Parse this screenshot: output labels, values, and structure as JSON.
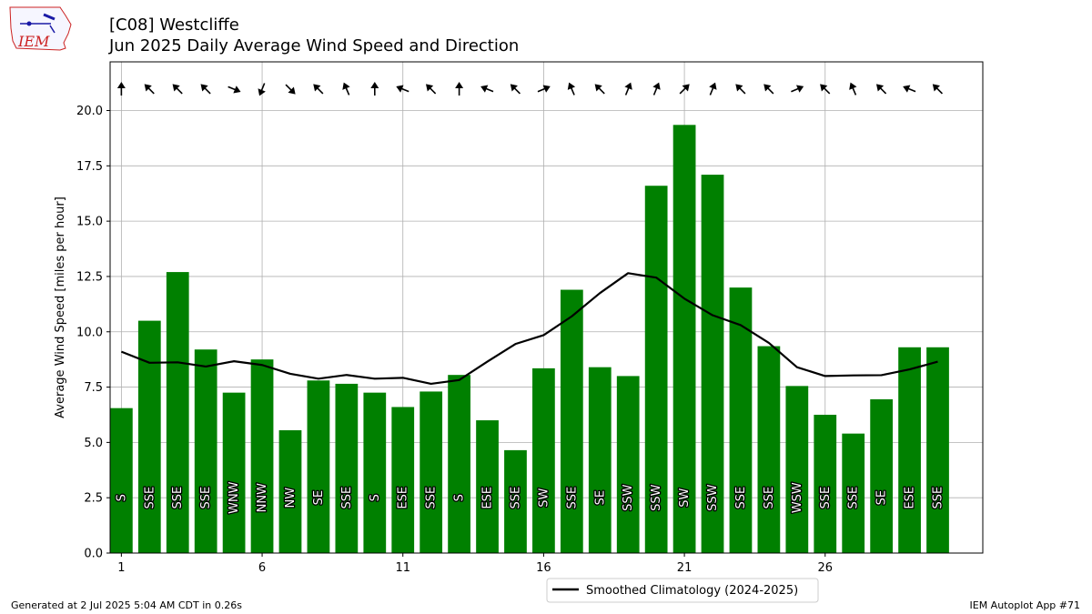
{
  "header": {
    "title_line_1": "[C08] Westcliffe",
    "title_line_2": "Jun 2025 Daily Average Wind Speed and Direction"
  },
  "logo": {
    "text": "IEM"
  },
  "footer": {
    "generated": "Generated at 2 Jul 2025 5:04 AM CDT in 0.26s",
    "app": "IEM Autoplot App #71"
  },
  "colors": {
    "bar": "#008000",
    "line": "#000000",
    "grid": "#b0b0b0",
    "logo_red": "#cc2222",
    "logo_blue": "#1a1aa6"
  },
  "chart_data": {
    "type": "bar",
    "title": "[C08] Westcliffe",
    "subtitle": "Jun 2025 Daily Average Wind Speed and Direction",
    "ylabel": "Average Wind Speed [miles per hour]",
    "xlabel": "",
    "ylim": [
      0,
      22.2
    ],
    "xlim": [
      0.6,
      31.6
    ],
    "yticks": [
      0.0,
      2.5,
      5.0,
      7.5,
      10.0,
      12.5,
      15.0,
      17.5,
      20.0
    ],
    "ytick_labels": [
      "0.0",
      "2.5",
      "5.0",
      "7.5",
      "10.0",
      "12.5",
      "15.0",
      "17.5",
      "20.0"
    ],
    "xticks": [
      1,
      6,
      11,
      16,
      21,
      26
    ],
    "xtick_labels": [
      "1",
      "6",
      "11",
      "16",
      "21",
      "26"
    ],
    "grid": true,
    "legend_position": "bottom-center, below the axes",
    "days": [
      1,
      2,
      3,
      4,
      5,
      6,
      7,
      8,
      9,
      10,
      11,
      12,
      13,
      14,
      15,
      16,
      17,
      18,
      19,
      20,
      21,
      22,
      23,
      24,
      25,
      26,
      27,
      28,
      29,
      30
    ],
    "values": [
      6.55,
      10.5,
      12.7,
      9.2,
      7.25,
      8.75,
      5.55,
      7.8,
      7.65,
      7.25,
      6.6,
      7.3,
      8.05,
      6.0,
      4.65,
      8.35,
      11.9,
      8.4,
      8.0,
      16.6,
      19.35,
      17.1,
      12.0,
      9.35,
      7.55,
      6.25,
      5.4,
      6.95,
      9.3,
      9.3
    ],
    "directions": [
      "S",
      "SSE",
      "SSE",
      "SSE",
      "WNW",
      "NNW",
      "NW",
      "SE",
      "SSE",
      "S",
      "ESE",
      "SSE",
      "S",
      "ESE",
      "SSE",
      "SW",
      "SSE",
      "SE",
      "SSW",
      "SSW",
      "SW",
      "SSW",
      "SSE",
      "SSE",
      "WSW",
      "SSE",
      "SSE",
      "SE",
      "ESE",
      "SSE"
    ],
    "arrow_headings_deg": [
      0,
      315,
      315,
      315,
      112,
      202,
      135,
      315,
      337,
      0,
      292,
      315,
      0,
      292,
      315,
      67,
      337,
      315,
      22,
      22,
      45,
      22,
      315,
      315,
      67,
      315,
      337,
      315,
      292,
      315
    ],
    "series": [
      {
        "name": "Smoothed Climatology (2024-2025)",
        "type": "line",
        "values": [
          9.1,
          8.6,
          8.62,
          8.43,
          8.67,
          8.5,
          8.1,
          7.88,
          8.05,
          7.88,
          7.92,
          7.65,
          7.82,
          8.65,
          9.45,
          9.85,
          10.7,
          11.75,
          12.65,
          12.45,
          11.5,
          10.75,
          10.3,
          9.5,
          8.4,
          8.0,
          8.03,
          8.04,
          8.3,
          8.65
        ]
      }
    ]
  }
}
